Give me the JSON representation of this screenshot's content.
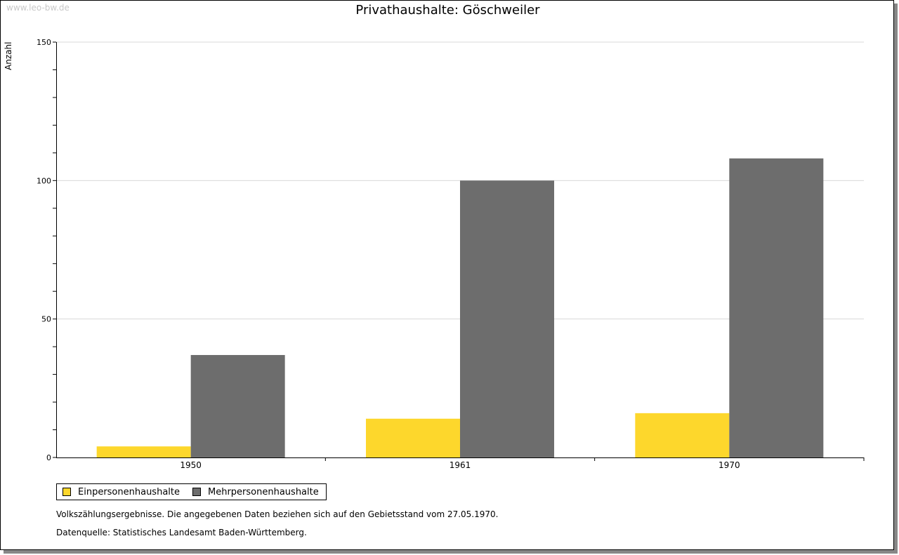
{
  "watermark": "www.leo-bw.de",
  "chart_data": {
    "type": "bar",
    "title": "Privathaushalte: Göschweiler",
    "xlabel": "",
    "ylabel": "Anzahl",
    "ylim": [
      0,
      150
    ],
    "yticks": [
      0,
      50,
      100,
      150
    ],
    "grid": true,
    "categories": [
      "1950",
      "1961",
      "1970"
    ],
    "series": [
      {
        "name": "Einpersonenhaushalte",
        "color": "#fdd72c",
        "values": [
          4,
          14,
          16
        ]
      },
      {
        "name": "Mehrpersonenhaushalte",
        "color": "#6d6d6d",
        "values": [
          37,
          100,
          108
        ]
      }
    ],
    "legend_position": "bottom-left"
  },
  "notes": [
    "Volkszählungsergebnisse. Die angegebenen Daten beziehen sich auf den Gebietsstand vom 27.05.1970.",
    "Datenquelle: Statistisches Landesamt Baden-Württemberg."
  ]
}
